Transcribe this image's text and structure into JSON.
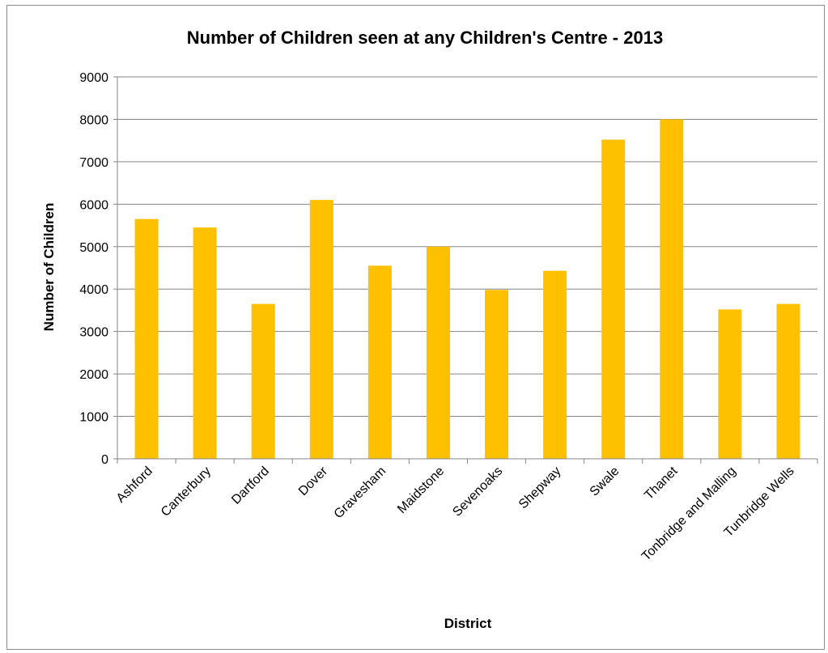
{
  "chart_data": {
    "type": "bar",
    "title": "Number of Children seen at any Children's Centre - 2013",
    "xlabel": "District",
    "ylabel": "Number of Children",
    "categories": [
      "Ashford",
      "Canterbury",
      "Dartford",
      "Dover",
      "Gravesham",
      "Maidstone",
      "Sevenoaks",
      "Shepway",
      "Swale",
      "Thanet",
      "Tonbridge and Malling",
      "Tunbridge Wells"
    ],
    "values": [
      5650,
      5450,
      3650,
      6100,
      4550,
      5000,
      3980,
      4430,
      7520,
      8000,
      3520,
      3650
    ],
    "ylim": [
      0,
      9000
    ],
    "yticks": [
      0,
      1000,
      2000,
      3000,
      4000,
      5000,
      6000,
      7000,
      8000,
      9000
    ],
    "grid": true,
    "legend": "none",
    "colors": {
      "bar": "#FFC000",
      "grid": "#868686",
      "axis": "#868686",
      "border": "#8c8c8c"
    }
  }
}
